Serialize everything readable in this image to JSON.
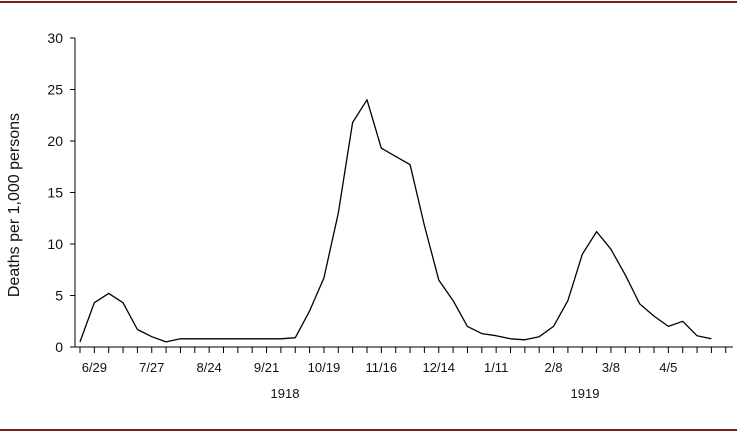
{
  "colors": {
    "rule": "#7a1e1e",
    "line": "#000000"
  },
  "chart_data": {
    "type": "line",
    "ylabel": "Deaths per 1,000 persons",
    "ylim": [
      0,
      30
    ],
    "yticks": [
      0,
      5,
      10,
      15,
      20,
      25,
      30
    ],
    "x_tick_labels": [
      "6/29",
      "7/27",
      "8/24",
      "9/21",
      "10/19",
      "11/16",
      "12/14",
      "1/11",
      "2/8",
      "3/8",
      "4/5"
    ],
    "year_labels": [
      "1918",
      "1919"
    ],
    "x_start": "1918-06-22",
    "x_step_days": 7,
    "grid": false,
    "series": [
      {
        "values": [
          0.5,
          4.3,
          5.2,
          4.3,
          1.7,
          1.0,
          0.5,
          0.8,
          0.8,
          0.8,
          0.8,
          0.8,
          0.8,
          0.8,
          0.8,
          0.9,
          3.5,
          6.7,
          13.0,
          21.8,
          24.0,
          19.3,
          18.5,
          17.7,
          11.8,
          6.5,
          4.5,
          2.0,
          1.3,
          1.1,
          0.8,
          0.7,
          1.0,
          2.0,
          4.5,
          9.0,
          11.2,
          9.5,
          7.0,
          4.2,
          3.0,
          2.0,
          2.5,
          1.1,
          0.8
        ]
      }
    ]
  }
}
